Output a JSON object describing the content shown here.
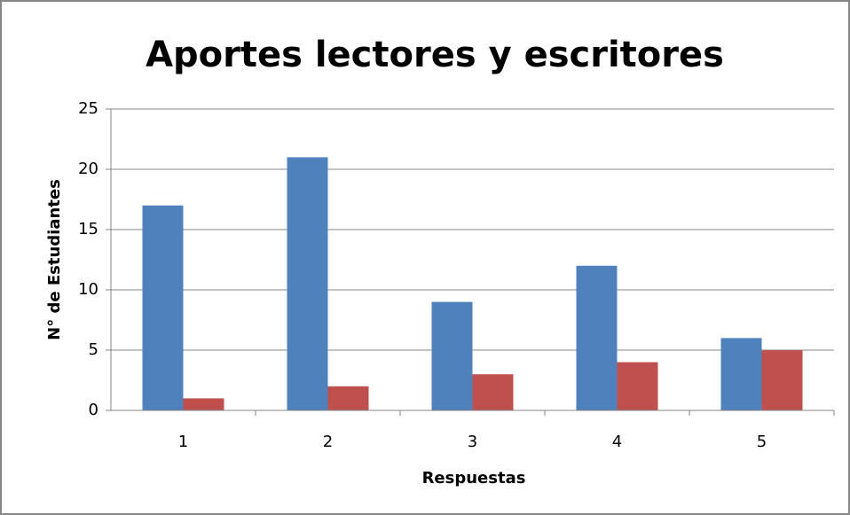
{
  "chart_data": {
    "type": "bar",
    "title": "Aportes lectores y escritores",
    "x_label": "Respuestas",
    "y_label": "N° de Estudiantes",
    "categories": [
      "1",
      "2",
      "3",
      "4",
      "5"
    ],
    "series": [
      {
        "color": "#4f81bd",
        "values": [
          17,
          21,
          9,
          12,
          6
        ]
      },
      {
        "color": "#c0504d",
        "values": [
          1,
          2,
          3,
          4,
          5
        ]
      }
    ],
    "ylim": [
      0,
      25
    ],
    "yticks": [
      0,
      5,
      10,
      15,
      20,
      25
    ],
    "grid": true
  }
}
